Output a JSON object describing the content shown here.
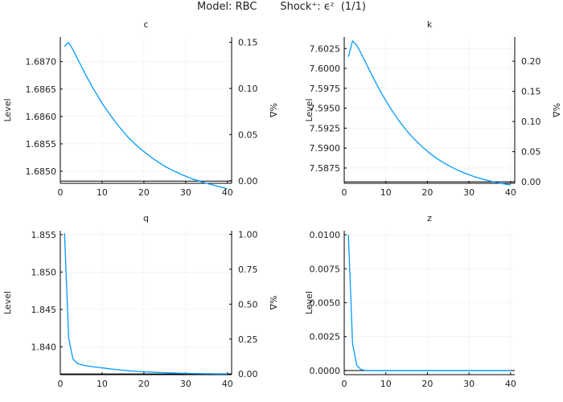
{
  "figure": {
    "model_label": "Model: RBC",
    "shock_label": "Shock⁺: ϵᶻ",
    "page_label": "(1/1)"
  },
  "style": {
    "line_color": "#009AFA",
    "axis_color": "#000000",
    "grid_color": "#EEEEEE"
  },
  "chart_data": [
    {
      "type": "line",
      "title": "c",
      "xlabel": "",
      "ylabel": "Level",
      "y2label": "%Δ",
      "xlim": [
        0,
        41
      ],
      "ylim": [
        1.68478,
        1.68745
      ],
      "y2lim": [
        -0.0028,
        0.1557
      ],
      "xticks": [
        0,
        10,
        20,
        30,
        40
      ],
      "yticks": [
        "1.6850",
        "1.6855",
        "1.6860",
        "1.6865",
        "1.6870"
      ],
      "y2ticks": [
        "0.00",
        "0.05",
        "0.10",
        "0.15"
      ],
      "baseline": 1.68482,
      "series": [
        {
          "values": [
            [
              1,
              1.68728
            ],
            [
              2,
              1.68735
            ],
            [
              3,
              1.68722
            ],
            [
              4,
              1.68707
            ],
            [
              5,
              1.68692
            ],
            [
              6,
              1.68677
            ],
            [
              7,
              1.68663
            ],
            [
              8,
              1.68649
            ],
            [
              9,
              1.68637
            ],
            [
              10,
              1.68624
            ],
            [
              11,
              1.68613
            ],
            [
              12,
              1.68602
            ],
            [
              13,
              1.68592
            ],
            [
              14,
              1.68582
            ],
            [
              15,
              1.68573
            ],
            [
              16,
              1.68564
            ],
            [
              17,
              1.68556
            ],
            [
              18,
              1.68549
            ],
            [
              19,
              1.68542
            ],
            [
              20,
              1.68536
            ],
            [
              21,
              1.6853
            ],
            [
              22,
              1.68524
            ],
            [
              23,
              1.68519
            ],
            [
              24,
              1.68514
            ],
            [
              25,
              1.68509
            ],
            [
              26,
              1.68505
            ],
            [
              27,
              1.68501
            ],
            [
              28,
              1.68498
            ],
            [
              29,
              1.68494
            ],
            [
              30,
              1.68491
            ],
            [
              31,
              1.68488
            ],
            [
              32,
              1.68485
            ],
            [
              33,
              1.68483
            ],
            [
              34,
              1.6848
            ],
            [
              35,
              1.68478
            ],
            [
              36,
              1.68476
            ],
            [
              37,
              1.68474
            ],
            [
              38,
              1.68472
            ],
            [
              39,
              1.6847
            ],
            [
              40,
              1.68468
            ]
          ]
        }
      ]
    },
    {
      "type": "line",
      "title": "k",
      "xlabel": "",
      "ylabel": "Level",
      "y2label": "%Δ",
      "xlim": [
        0,
        41
      ],
      "ylim": [
        7.58558,
        7.60394
      ],
      "y2lim": [
        -0.0025,
        0.2401
      ],
      "xticks": [
        0,
        10,
        20,
        30,
        40
      ],
      "yticks": [
        "7.5875",
        "7.5900",
        "7.5925",
        "7.5950",
        "7.5975",
        "7.6000",
        "7.6025"
      ],
      "y2ticks": [
        "0.00",
        "0.05",
        "0.10",
        "0.15",
        "0.20"
      ],
      "baseline": 7.58577,
      "series": [
        {
          "values": [
            [
              1,
              7.60145
            ],
            [
              2,
              7.60345
            ],
            [
              3,
              7.6029
            ],
            [
              4,
              7.60195
            ],
            [
              5,
              7.6009
            ],
            [
              6,
              7.59985
            ],
            [
              7,
              7.5988
            ],
            [
              8,
              7.5978
            ],
            [
              9,
              7.59685
            ],
            [
              10,
              7.59595
            ],
            [
              11,
              7.5951
            ],
            [
              12,
              7.5943
            ],
            [
              13,
              7.59355
            ],
            [
              14,
              7.59285
            ],
            [
              15,
              7.5922
            ],
            [
              16,
              7.5916
            ],
            [
              17,
              7.59105
            ],
            [
              18,
              7.59053
            ],
            [
              19,
              7.59005
            ],
            [
              20,
              7.5896
            ],
            [
              21,
              7.58918
            ],
            [
              22,
              7.5888
            ],
            [
              23,
              7.58845
            ],
            [
              24,
              7.58813
            ],
            [
              25,
              7.58783
            ],
            [
              26,
              7.58755
            ],
            [
              27,
              7.5873
            ],
            [
              28,
              7.58707
            ],
            [
              29,
              7.58685
            ],
            [
              30,
              7.58665
            ],
            [
              31,
              7.58647
            ],
            [
              32,
              7.5863
            ],
            [
              33,
              7.58615
            ],
            [
              34,
              7.58601
            ],
            [
              35,
              7.58588
            ],
            [
              36,
              7.58576
            ],
            [
              37,
              7.58565
            ],
            [
              38,
              7.58555
            ],
            [
              39,
              7.58546
            ],
            [
              40,
              7.58538
            ]
          ]
        }
      ]
    },
    {
      "type": "line",
      "title": "q",
      "xlabel": "",
      "ylabel": "Level",
      "y2label": "%Δ",
      "xlim": [
        0,
        41
      ],
      "ylim": [
        1.83627,
        1.85552
      ],
      "y2lim": [
        -0.0045,
        1.0255
      ],
      "xticks": [
        0,
        10,
        20,
        30,
        40
      ],
      "yticks": [
        "1.840",
        "1.845",
        "1.850",
        "1.855"
      ],
      "y2ticks": [
        "0.00",
        "0.25",
        "0.50",
        "0.75",
        "1.00"
      ],
      "baseline": 1.83636,
      "series": [
        {
          "values": [
            [
              1,
              1.85522
            ],
            [
              2,
              1.84118
            ],
            [
              3,
              1.8384
            ],
            [
              4,
              1.8378
            ],
            [
              5,
              1.8376
            ],
            [
              6,
              1.83748
            ],
            [
              7,
              1.8374
            ],
            [
              8,
              1.83732
            ],
            [
              9,
              1.83725
            ],
            [
              10,
              1.83718
            ],
            [
              11,
              1.83711
            ],
            [
              12,
              1.83704
            ],
            [
              13,
              1.83698
            ],
            [
              14,
              1.83692
            ],
            [
              15,
              1.83686
            ],
            [
              16,
              1.83681
            ],
            [
              17,
              1.83677
            ],
            [
              18,
              1.83673
            ],
            [
              19,
              1.83669
            ],
            [
              20,
              1.83666
            ],
            [
              21,
              1.83663
            ],
            [
              22,
              1.8366
            ],
            [
              23,
              1.83657
            ],
            [
              24,
              1.83655
            ],
            [
              25,
              1.83653
            ],
            [
              26,
              1.83651
            ],
            [
              27,
              1.83649
            ],
            [
              28,
              1.83647
            ],
            [
              29,
              1.83646
            ],
            [
              30,
              1.83644
            ],
            [
              31,
              1.83643
            ],
            [
              32,
              1.83642
            ],
            [
              33,
              1.83641
            ],
            [
              34,
              1.8364
            ],
            [
              35,
              1.83639
            ],
            [
              36,
              1.83639
            ],
            [
              37,
              1.83638
            ],
            [
              38,
              1.83638
            ],
            [
              39,
              1.83637
            ],
            [
              40,
              1.83637
            ]
          ]
        }
      ]
    },
    {
      "type": "line",
      "title": "z",
      "xlabel": "",
      "ylabel": "Level",
      "xlim": [
        0,
        41
      ],
      "ylim": [
        -0.0003,
        0.0103
      ],
      "xticks": [
        0,
        10,
        20,
        30,
        40
      ],
      "yticks": [
        "0.0000",
        "0.0025",
        "0.0050",
        "0.0075",
        "0.0100"
      ],
      "baseline": 0,
      "series": [
        {
          "values": [
            [
              1,
              0.01
            ],
            [
              2,
              0.002
            ],
            [
              3,
              0.0004
            ],
            [
              4,
              8e-05
            ],
            [
              5,
              1.6e-05
            ],
            [
              6,
              3e-06
            ],
            [
              7,
              0
            ],
            [
              8,
              0
            ],
            [
              9,
              0
            ],
            [
              10,
              0
            ],
            [
              11,
              0
            ],
            [
              12,
              0
            ],
            [
              13,
              0
            ],
            [
              14,
              0
            ],
            [
              15,
              0
            ],
            [
              16,
              0
            ],
            [
              17,
              0
            ],
            [
              18,
              0
            ],
            [
              19,
              0
            ],
            [
              20,
              0
            ],
            [
              21,
              0
            ],
            [
              22,
              0
            ],
            [
              23,
              0
            ],
            [
              24,
              0
            ],
            [
              25,
              0
            ],
            [
              26,
              0
            ],
            [
              27,
              0
            ],
            [
              28,
              0
            ],
            [
              29,
              0
            ],
            [
              30,
              0
            ],
            [
              31,
              0
            ],
            [
              32,
              0
            ],
            [
              33,
              0
            ],
            [
              34,
              0
            ],
            [
              35,
              0
            ],
            [
              36,
              0
            ],
            [
              37,
              0
            ],
            [
              38,
              0
            ],
            [
              39,
              0
            ],
            [
              40,
              0
            ]
          ]
        }
      ]
    }
  ]
}
